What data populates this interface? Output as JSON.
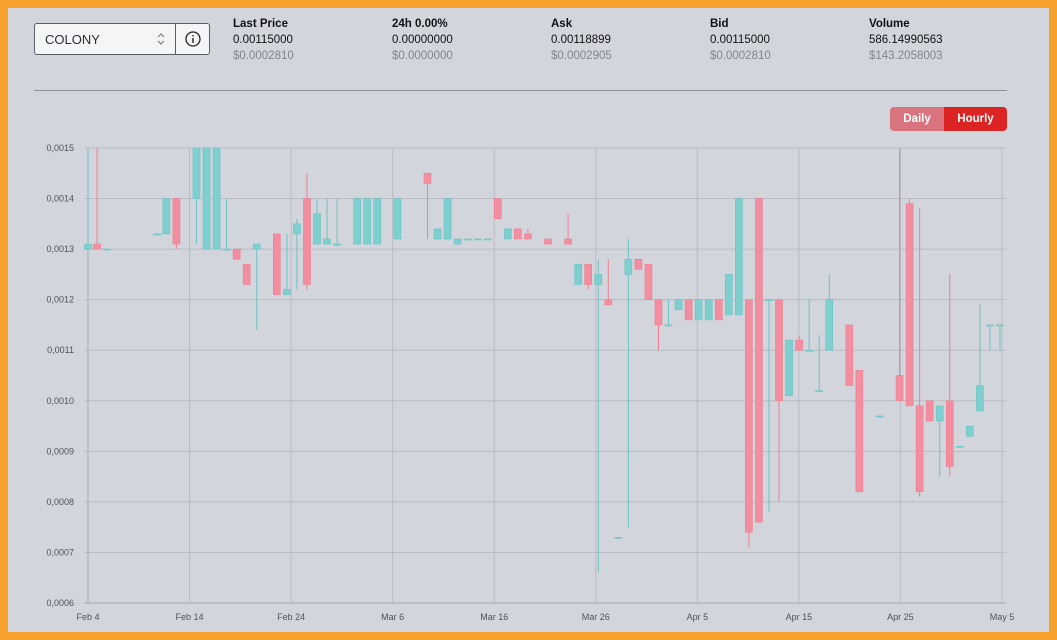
{
  "selector": {
    "value": "COLONY"
  },
  "stats": [
    {
      "label": "Last Price",
      "value": "0.00115000",
      "usd": "$0.0002810"
    },
    {
      "label": "24h 0.00%",
      "value": "0.00000000",
      "usd": "$0.0000000"
    },
    {
      "label": "Ask",
      "value": "0.00118899",
      "usd": "$0.0002905"
    },
    {
      "label": "Bid",
      "value": "0.00115000",
      "usd": "$0.0002810"
    },
    {
      "label": "Volume",
      "value": "586.14990563",
      "usd": "$143.2058003"
    }
  ],
  "toggle": {
    "daily": "Daily",
    "hourly": "Hourly",
    "active": "Hourly"
  },
  "colors": {
    "up": "#7ecfcf",
    "down": "#f28ea0",
    "upLine": "#6cc3c3",
    "downLine": "#ee7f92",
    "grid": "#b9bcc3"
  },
  "chart_data": {
    "type": "candlestick",
    "x_ticks": [
      "Feb 4",
      "Feb 14",
      "Feb 24",
      "Mar 6",
      "Mar 16",
      "Mar 26",
      "Apr 5",
      "Apr 15",
      "Apr 25",
      "May 5"
    ],
    "y_ticks": [
      "0,0015",
      "0,0014",
      "0,0013",
      "0,0012",
      "0,0011",
      "0,0010",
      "0,0009",
      "0,0008",
      "0,0007",
      "0,0006"
    ],
    "ylim": [
      0.0006,
      0.0015
    ],
    "xlim_days": [
      0,
      91
    ],
    "candles": [
      {
        "d": 0.0,
        "o": 0.0013,
        "c": 0.00131,
        "h": 0.0015,
        "l": 0.0013
      },
      {
        "d": 0.9,
        "o": 0.00131,
        "c": 0.0013,
        "h": 0.0015,
        "l": 0.0013
      },
      {
        "d": 1.9,
        "o": 0.0013,
        "c": 0.0013,
        "h": 0.0013,
        "l": 0.0013
      },
      {
        "d": 6.9,
        "o": 0.00133,
        "c": 0.00133,
        "h": 0.00133,
        "l": 0.00133
      },
      {
        "d": 7.8,
        "o": 0.00133,
        "c": 0.0014,
        "h": 0.0014,
        "l": 0.00133
      },
      {
        "d": 8.8,
        "o": 0.0014,
        "c": 0.00131,
        "h": 0.0014,
        "l": 0.0013
      },
      {
        "d": 10.8,
        "o": 0.0014,
        "c": 0.0015,
        "h": 0.0015,
        "l": 0.00131
      },
      {
        "d": 11.8,
        "o": 0.0013,
        "c": 0.0015,
        "h": 0.0015,
        "l": 0.0013
      },
      {
        "d": 12.8,
        "o": 0.0013,
        "c": 0.0015,
        "h": 0.0015,
        "l": 0.0013
      },
      {
        "d": 13.8,
        "o": 0.0013,
        "c": 0.0013,
        "h": 0.0014,
        "l": 0.0013
      },
      {
        "d": 14.8,
        "o": 0.0013,
        "c": 0.00128,
        "h": 0.0013,
        "l": 0.00128
      },
      {
        "d": 15.8,
        "o": 0.00127,
        "c": 0.00123,
        "h": 0.00127,
        "l": 0.00123
      },
      {
        "d": 16.8,
        "o": 0.0013,
        "c": 0.00131,
        "h": 0.00131,
        "l": 0.00114
      },
      {
        "d": 18.8,
        "o": 0.00133,
        "c": 0.00121,
        "h": 0.00133,
        "l": 0.00121
      },
      {
        "d": 19.8,
        "o": 0.00121,
        "c": 0.00122,
        "h": 0.00133,
        "l": 0.00121
      },
      {
        "d": 20.8,
        "o": 0.00133,
        "c": 0.00135,
        "h": 0.00136,
        "l": 0.00122
      },
      {
        "d": 21.8,
        "o": 0.0014,
        "c": 0.00123,
        "h": 0.00145,
        "l": 0.00122
      },
      {
        "d": 22.8,
        "o": 0.00131,
        "c": 0.00137,
        "h": 0.0014,
        "l": 0.00131
      },
      {
        "d": 23.8,
        "o": 0.00131,
        "c": 0.00132,
        "h": 0.0014,
        "l": 0.00131
      },
      {
        "d": 24.8,
        "o": 0.00131,
        "c": 0.00131,
        "h": 0.0014,
        "l": 0.00131
      },
      {
        "d": 26.8,
        "o": 0.00131,
        "c": 0.0014,
        "h": 0.0014,
        "l": 0.00131
      },
      {
        "d": 27.8,
        "o": 0.00131,
        "c": 0.0014,
        "h": 0.0014,
        "l": 0.00131
      },
      {
        "d": 28.8,
        "o": 0.00131,
        "c": 0.0014,
        "h": 0.0014,
        "l": 0.00131
      },
      {
        "d": 30.8,
        "o": 0.00132,
        "c": 0.0014,
        "h": 0.0014,
        "l": 0.00132
      },
      {
        "d": 33.8,
        "o": 0.00145,
        "c": 0.00143,
        "h": 0.00145,
        "l": 0.00132
      },
      {
        "d": 34.8,
        "o": 0.00132,
        "c": 0.00134,
        "h": 0.00134,
        "l": 0.00132
      },
      {
        "d": 35.8,
        "o": 0.00132,
        "c": 0.0014,
        "h": 0.0014,
        "l": 0.00132
      },
      {
        "d": 36.8,
        "o": 0.00131,
        "c": 0.00132,
        "h": 0.00132,
        "l": 0.00131
      },
      {
        "d": 37.8,
        "o": 0.00132,
        "c": 0.00132,
        "h": 0.00132,
        "l": 0.00132
      },
      {
        "d": 38.8,
        "o": 0.00132,
        "c": 0.00132,
        "h": 0.00132,
        "l": 0.00132
      },
      {
        "d": 39.8,
        "o": 0.00132,
        "c": 0.00132,
        "h": 0.00132,
        "l": 0.00132
      },
      {
        "d": 40.8,
        "o": 0.0014,
        "c": 0.00136,
        "h": 0.0014,
        "l": 0.00136
      },
      {
        "d": 41.8,
        "o": 0.00132,
        "c": 0.00134,
        "h": 0.00134,
        "l": 0.00132
      },
      {
        "d": 42.8,
        "o": 0.00134,
        "c": 0.00132,
        "h": 0.00134,
        "l": 0.00132
      },
      {
        "d": 43.8,
        "o": 0.00133,
        "c": 0.00132,
        "h": 0.00134,
        "l": 0.00132
      },
      {
        "d": 45.8,
        "o": 0.00132,
        "c": 0.00131,
        "h": 0.00132,
        "l": 0.00131
      },
      {
        "d": 47.8,
        "o": 0.00132,
        "c": 0.00131,
        "h": 0.00137,
        "l": 0.00131
      },
      {
        "d": 48.8,
        "o": 0.00123,
        "c": 0.00127,
        "h": 0.00127,
        "l": 0.00123
      },
      {
        "d": 49.8,
        "o": 0.00127,
        "c": 0.00123,
        "h": 0.00127,
        "l": 0.00122
      },
      {
        "d": 50.8,
        "o": 0.00123,
        "c": 0.00125,
        "h": 0.00128,
        "l": 0.00066
      },
      {
        "d": 51.8,
        "o": 0.0012,
        "c": 0.00119,
        "h": 0.00128,
        "l": 0.00119
      },
      {
        "d": 52.8,
        "o": 0.00073,
        "c": 0.00073,
        "h": 0.00073,
        "l": 0.00073
      },
      {
        "d": 53.8,
        "o": 0.00125,
        "c": 0.00128,
        "h": 0.00132,
        "l": 0.00075
      },
      {
        "d": 54.8,
        "o": 0.00128,
        "c": 0.00126,
        "h": 0.00128,
        "l": 0.00126
      },
      {
        "d": 55.8,
        "o": 0.00127,
        "c": 0.0012,
        "h": 0.00127,
        "l": 0.0012
      },
      {
        "d": 56.8,
        "o": 0.0012,
        "c": 0.00115,
        "h": 0.0012,
        "l": 0.0011
      },
      {
        "d": 57.8,
        "o": 0.00115,
        "c": 0.00115,
        "h": 0.0012,
        "l": 0.00115
      },
      {
        "d": 58.8,
        "o": 0.00118,
        "c": 0.0012,
        "h": 0.0012,
        "l": 0.00118
      },
      {
        "d": 59.8,
        "o": 0.0012,
        "c": 0.00116,
        "h": 0.0012,
        "l": 0.00116
      },
      {
        "d": 60.8,
        "o": 0.00116,
        "c": 0.0012,
        "h": 0.0012,
        "l": 0.00116
      },
      {
        "d": 61.8,
        "o": 0.00116,
        "c": 0.0012,
        "h": 0.0012,
        "l": 0.00116
      },
      {
        "d": 62.8,
        "o": 0.0012,
        "c": 0.00116,
        "h": 0.0012,
        "l": 0.00116
      },
      {
        "d": 63.8,
        "o": 0.00117,
        "c": 0.00125,
        "h": 0.00125,
        "l": 0.00117
      },
      {
        "d": 64.8,
        "o": 0.00117,
        "c": 0.0014,
        "h": 0.0014,
        "l": 0.00117
      },
      {
        "d": 65.8,
        "o": 0.0012,
        "c": 0.00074,
        "h": 0.0012,
        "l": 0.00071
      },
      {
        "d": 66.8,
        "o": 0.0014,
        "c": 0.00076,
        "h": 0.0014,
        "l": 0.00076
      },
      {
        "d": 67.8,
        "o": 0.0012,
        "c": 0.0012,
        "h": 0.0012,
        "l": 0.00078
      },
      {
        "d": 68.8,
        "o": 0.0012,
        "c": 0.001,
        "h": 0.0012,
        "l": 0.0008
      },
      {
        "d": 69.8,
        "o": 0.00101,
        "c": 0.00112,
        "h": 0.00112,
        "l": 0.00101
      },
      {
        "d": 70.8,
        "o": 0.00112,
        "c": 0.0011,
        "h": 0.00113,
        "l": 0.0011
      },
      {
        "d": 71.8,
        "o": 0.0011,
        "c": 0.0011,
        "h": 0.0012,
        "l": 0.0011
      },
      {
        "d": 72.8,
        "o": 0.00102,
        "c": 0.00102,
        "h": 0.00113,
        "l": 0.00102
      },
      {
        "d": 73.8,
        "o": 0.0011,
        "c": 0.0012,
        "h": 0.00125,
        "l": 0.0011
      },
      {
        "d": 75.8,
        "o": 0.00115,
        "c": 0.00103,
        "h": 0.00115,
        "l": 0.00103
      },
      {
        "d": 76.8,
        "o": 0.00106,
        "c": 0.00082,
        "h": 0.00106,
        "l": 0.00082
      },
      {
        "d": 78.8,
        "o": 0.00097,
        "c": 0.00097,
        "h": 0.00097,
        "l": 0.00097
      },
      {
        "d": 80.8,
        "o": 0.00105,
        "c": 0.001,
        "h": 0.0015,
        "l": 0.001
      },
      {
        "d": 81.8,
        "o": 0.00139,
        "c": 0.00099,
        "h": 0.0014,
        "l": 0.00099
      },
      {
        "d": 82.8,
        "o": 0.00099,
        "c": 0.00082,
        "h": 0.00138,
        "l": 0.00081
      },
      {
        "d": 83.8,
        "o": 0.001,
        "c": 0.00096,
        "h": 0.001,
        "l": 0.00096
      },
      {
        "d": 84.8,
        "o": 0.00096,
        "c": 0.00099,
        "h": 0.00099,
        "l": 0.00085
      },
      {
        "d": 85.8,
        "o": 0.001,
        "c": 0.00087,
        "h": 0.00125,
        "l": 0.00085
      },
      {
        "d": 86.8,
        "o": 0.00091,
        "c": 0.00091,
        "h": 0.00091,
        "l": 0.00091
      },
      {
        "d": 87.8,
        "o": 0.00093,
        "c": 0.00095,
        "h": 0.00095,
        "l": 0.00093
      },
      {
        "d": 88.8,
        "o": 0.00098,
        "c": 0.00103,
        "h": 0.00119,
        "l": 0.00098
      },
      {
        "d": 89.8,
        "o": 0.00115,
        "c": 0.00115,
        "h": 0.00115,
        "l": 0.0011
      },
      {
        "d": 90.8,
        "o": 0.00115,
        "c": 0.00115,
        "h": 0.00115,
        "l": 0.0011
      }
    ]
  }
}
